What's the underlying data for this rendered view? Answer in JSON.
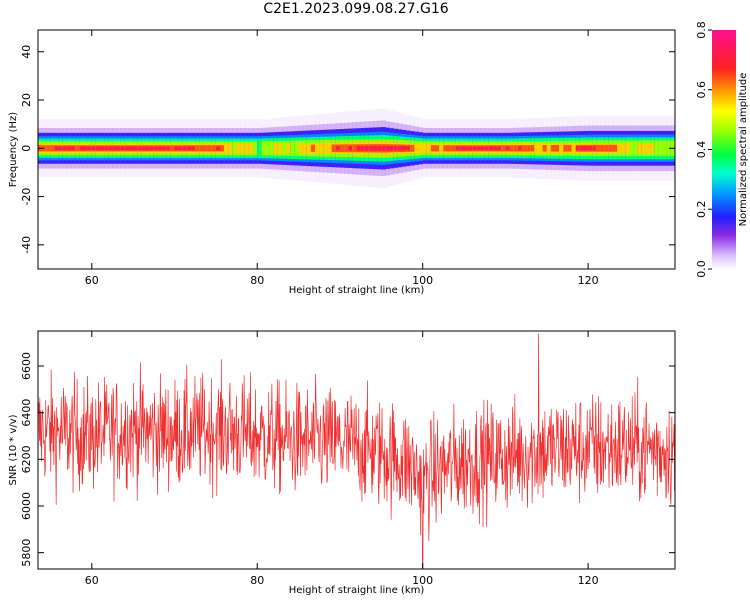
{
  "title": "C2E1.2023.099.08.27.G16",
  "chart_data": [
    {
      "type": "heatmap",
      "xlabel": "Height of straight line (km)",
      "ylabel": "Frequency (Hz)",
      "xlim": [
        53.5,
        130.5
      ],
      "ylim": [
        -50,
        49
      ],
      "xticks": [
        "60",
        "80",
        "100",
        "120"
      ],
      "yticks": [
        "40",
        "20",
        "0",
        "-20",
        "-40"
      ],
      "colorbar": {
        "label": "Normalized spectral amplitude",
        "range": [
          0.0,
          0.8
        ],
        "ticks": [
          "0.0",
          "0.2",
          "0.4",
          "0.6",
          "0.8"
        ]
      },
      "band_center_hz": 0,
      "band_halfwidth_hz": [
        [
          54,
          4
        ],
        [
          70,
          4
        ],
        [
          80,
          4
        ],
        [
          90,
          5
        ],
        [
          95,
          5.5
        ],
        [
          100,
          4
        ],
        [
          110,
          4
        ],
        [
          120,
          4.5
        ],
        [
          130,
          4.5
        ]
      ],
      "peak_amplitude_along_height": [
        [
          54,
          0.7
        ],
        [
          58,
          0.74
        ],
        [
          62,
          0.76
        ],
        [
          66,
          0.78
        ],
        [
          68,
          0.76
        ],
        [
          72,
          0.72
        ],
        [
          76,
          0.62
        ],
        [
          80,
          0.5
        ],
        [
          84,
          0.55
        ],
        [
          88,
          0.62
        ],
        [
          92,
          0.74
        ],
        [
          95,
          0.8
        ],
        [
          98,
          0.72
        ],
        [
          100,
          0.55
        ],
        [
          104,
          0.74
        ],
        [
          107,
          0.78
        ],
        [
          110,
          0.72
        ],
        [
          114,
          0.6
        ],
        [
          118,
          0.66
        ],
        [
          120,
          0.74
        ],
        [
          124,
          0.58
        ],
        [
          130,
          0.5
        ]
      ]
    },
    {
      "type": "line",
      "xlabel": "Height of straight line (km)",
      "ylabel": "SNR (10 * v/v)",
      "xlim": [
        53.5,
        130.5
      ],
      "ylim": [
        5730,
        6750
      ],
      "xticks": [
        "60",
        "80",
        "100",
        "120"
      ],
      "yticks": [
        "6600",
        "6400",
        "6200",
        "6000",
        "5800"
      ],
      "series": [
        {
          "color": "#f03030",
          "x_range": [
            53.5,
            130.5
          ],
          "mean_curve": [
            [
              54,
              6320
            ],
            [
              60,
              6300
            ],
            [
              65,
              6330
            ],
            [
              70,
              6310
            ],
            [
              75,
              6330
            ],
            [
              80,
              6300
            ],
            [
              85,
              6280
            ],
            [
              90,
              6270
            ],
            [
              95,
              6230
            ],
            [
              98,
              6190
            ],
            [
              100,
              6110
            ],
            [
              103,
              6170
            ],
            [
              106,
              6200
            ],
            [
              110,
              6210
            ],
            [
              113,
              6230
            ],
            [
              116,
              6240
            ],
            [
              120,
              6250
            ],
            [
              125,
              6250
            ],
            [
              130,
              6240
            ]
          ],
          "noise_amplitude": 130,
          "min_point": [
            100,
            5735
          ],
          "max_point": [
            114,
            6740
          ]
        }
      ]
    }
  ]
}
